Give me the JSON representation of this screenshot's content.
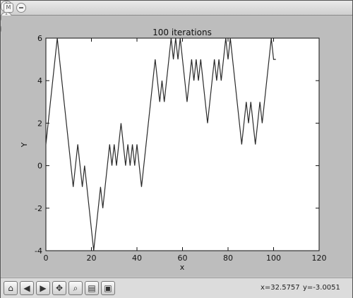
{
  "window": {
    "app_icon_text": "M",
    "menu_icon": "circle-menu-icon",
    "controls": [
      "chevron-down-icon",
      "chevron-up-icon",
      "close-icon"
    ]
  },
  "toolbar": {
    "tools": [
      "home-icon",
      "back-icon",
      "forward-icon",
      "pan-icon",
      "zoom-icon",
      "subplots-icon",
      "save-icon"
    ],
    "coord_x": "x=32.5757",
    "coord_y": "y=-3.0051"
  },
  "chart_data": {
    "type": "line",
    "title": "100 iterations",
    "xlabel": "x",
    "ylabel": "Y",
    "xlim": [
      0,
      120
    ],
    "ylim": [
      -4,
      6
    ],
    "xticks": [
      0,
      20,
      40,
      60,
      80,
      100,
      120
    ],
    "yticks": [
      -4,
      -2,
      0,
      2,
      4,
      6
    ],
    "grid": false,
    "series": [
      {
        "color": "#2a2a2a",
        "x": [
          0,
          1,
          2,
          3,
          4,
          5,
          6,
          7,
          8,
          9,
          10,
          11,
          12,
          13,
          14,
          15,
          16,
          17,
          18,
          19,
          20,
          21,
          22,
          23,
          24,
          25,
          26,
          27,
          28,
          29,
          30,
          31,
          32,
          33,
          34,
          35,
          36,
          37,
          38,
          39,
          40,
          41,
          42,
          43,
          44,
          45,
          46,
          47,
          48,
          49,
          50,
          51,
          52,
          53,
          54,
          55,
          56,
          57,
          58,
          59,
          60,
          61,
          62,
          63,
          64,
          65,
          66,
          67,
          68,
          69,
          70,
          71,
          72,
          73,
          74,
          75,
          76,
          77,
          78,
          79,
          80,
          81,
          82,
          83,
          84,
          85,
          86,
          87,
          88,
          89,
          90,
          91,
          92,
          93,
          94,
          95,
          96,
          97,
          98,
          99,
          100,
          101
        ],
        "y": [
          1,
          2,
          3,
          4,
          5,
          6,
          5,
          4,
          3,
          2,
          1,
          0,
          -1,
          0,
          1,
          0,
          -1,
          0,
          -1,
          -2,
          -3,
          -4,
          -3,
          -2,
          -1,
          -2,
          -1,
          0,
          1,
          0,
          1,
          0,
          1,
          2,
          1,
          0,
          1,
          0,
          1,
          0,
          1,
          0,
          -1,
          0,
          1,
          2,
          3,
          4,
          5,
          4,
          3,
          4,
          3,
          4,
          5,
          6,
          5,
          6,
          5,
          6,
          5,
          4,
          3,
          4,
          5,
          4,
          5,
          4,
          5,
          4,
          3,
          2,
          3,
          4,
          5,
          4,
          5,
          4,
          5,
          6,
          5,
          6,
          5,
          4,
          3,
          2,
          1,
          2,
          3,
          2,
          3,
          2,
          1,
          2,
          3,
          2,
          3,
          4,
          5,
          6,
          5,
          5
        ]
      }
    ]
  }
}
